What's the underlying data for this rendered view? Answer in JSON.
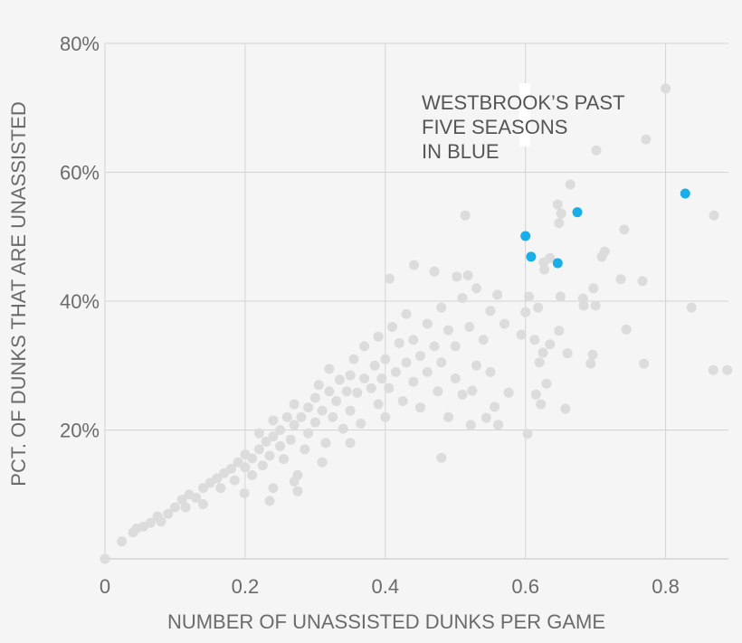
{
  "chart_data": {
    "type": "scatter",
    "title": "",
    "xlabel": "NUMBER OF UNASSISTED DUNKS PER GAME",
    "ylabel": "PCT. OF DUNKS THAT ARE UNASSISTED",
    "xlim": [
      0,
      0.89
    ],
    "ylim": [
      0,
      80
    ],
    "x_ticks": [
      "0",
      "0.2",
      "0.4",
      "0.6",
      "0.8"
    ],
    "x_tick_values": [
      0,
      0.2,
      0.4,
      0.6,
      0.8
    ],
    "y_ticks": [
      "20%",
      "40%",
      "60%",
      "80%"
    ],
    "y_tick_values": [
      20,
      40,
      60,
      80
    ],
    "grid": true,
    "annotation": [
      "WESTBROOK’S PAST",
      "FIVE SEASONS",
      "IN BLUE"
    ],
    "colors": {
      "background": "#f5f5f5",
      "other_players": "#dcdcdc",
      "westbrook": "#1aaee8",
      "grid": "#d4d4d4"
    },
    "series": [
      {
        "color": "#dcdcdc",
        "points": [
          [
            0,
            0
          ],
          [
            0.024,
            2.7
          ],
          [
            0.04,
            4.1
          ],
          [
            0.045,
            4.7
          ],
          [
            0.055,
            5.0
          ],
          [
            0.065,
            5.6
          ],
          [
            0.075,
            6.6
          ],
          [
            0.08,
            5.8
          ],
          [
            0.09,
            7.0
          ],
          [
            0.1,
            8.0
          ],
          [
            0.11,
            9.2
          ],
          [
            0.115,
            8.0
          ],
          [
            0.12,
            10.0
          ],
          [
            0.13,
            9.5
          ],
          [
            0.14,
            11.0
          ],
          [
            0.14,
            8.5
          ],
          [
            0.15,
            11.8
          ],
          [
            0.16,
            12.5
          ],
          [
            0.17,
            13.3
          ],
          [
            0.165,
            11.0
          ],
          [
            0.18,
            14.0
          ],
          [
            0.185,
            12.2
          ],
          [
            0.19,
            15.0
          ],
          [
            0.2,
            14.2
          ],
          [
            0.2,
            16.2
          ],
          [
            0.21,
            15.6
          ],
          [
            0.21,
            13.0
          ],
          [
            0.22,
            17.0
          ],
          [
            0.22,
            19.5
          ],
          [
            0.225,
            14.5
          ],
          [
            0.23,
            18.2
          ],
          [
            0.235,
            16.0
          ],
          [
            0.24,
            19.0
          ],
          [
            0.24,
            21.5
          ],
          [
            0.25,
            17.5
          ],
          [
            0.25,
            20.0
          ],
          [
            0.255,
            15.5
          ],
          [
            0.26,
            22.0
          ],
          [
            0.265,
            18.5
          ],
          [
            0.27,
            20.8
          ],
          [
            0.27,
            24.0
          ],
          [
            0.275,
            13.0
          ],
          [
            0.28,
            22.0
          ],
          [
            0.285,
            17.0
          ],
          [
            0.29,
            23.5
          ],
          [
            0.29,
            19.5
          ],
          [
            0.3,
            25.0
          ],
          [
            0.3,
            21.2
          ],
          [
            0.305,
            27.0
          ],
          [
            0.31,
            23.0
          ],
          [
            0.315,
            18.0
          ],
          [
            0.32,
            26.0
          ],
          [
            0.32,
            29.5
          ],
          [
            0.325,
            22.0
          ],
          [
            0.33,
            24.5
          ],
          [
            0.335,
            27.8
          ],
          [
            0.34,
            20.2
          ],
          [
            0.345,
            26.0
          ],
          [
            0.35,
            28.5
          ],
          [
            0.35,
            23.0
          ],
          [
            0.355,
            31.0
          ],
          [
            0.36,
            25.8
          ],
          [
            0.365,
            21.0
          ],
          [
            0.37,
            28.0
          ],
          [
            0.37,
            33.0
          ],
          [
            0.38,
            26.5
          ],
          [
            0.385,
            30.0
          ],
          [
            0.39,
            24.0
          ],
          [
            0.39,
            34.5
          ],
          [
            0.395,
            28.0
          ],
          [
            0.4,
            31.0
          ],
          [
            0.4,
            22.0
          ],
          [
            0.405,
            26.5
          ],
          [
            0.41,
            36.0
          ],
          [
            0.415,
            29.0
          ],
          [
            0.42,
            33.5
          ],
          [
            0.425,
            24.5
          ],
          [
            0.43,
            30.5
          ],
          [
            0.43,
            38.0
          ],
          [
            0.44,
            27.5
          ],
          [
            0.44,
            34.0
          ],
          [
            0.45,
            31.5
          ],
          [
            0.45,
            23.5
          ],
          [
            0.46,
            36.5
          ],
          [
            0.46,
            29.0
          ],
          [
            0.47,
            33.0
          ],
          [
            0.475,
            26.0
          ],
          [
            0.48,
            39.0
          ],
          [
            0.48,
            30.5
          ],
          [
            0.49,
            35.5
          ],
          [
            0.49,
            22.0
          ],
          [
            0.5,
            33.0
          ],
          [
            0.5,
            28.0
          ],
          [
            0.51,
            40.5
          ],
          [
            0.51,
            25.5
          ],
          [
            0.52,
            36.0
          ],
          [
            0.53,
            30.0
          ],
          [
            0.53,
            42.0
          ],
          [
            0.54,
            34.0
          ],
          [
            0.55,
            38.5
          ],
          [
            0.55,
            29.0
          ],
          [
            0.56,
            41.0
          ],
          [
            0.57,
            36.5
          ],
          [
            0.275,
            10.5
          ],
          [
            0.27,
            12.0
          ],
          [
            0.199,
            10.2
          ],
          [
            0.235,
            9.0
          ],
          [
            0.31,
            15.0
          ],
          [
            0.35,
            18.0
          ],
          [
            0.24,
            11.0
          ],
          [
            0.8,
            73.0
          ],
          [
            0.772,
            65.1
          ],
          [
            0.701,
            63.4
          ],
          [
            0.664,
            58.1
          ],
          [
            0.869,
            53.3
          ],
          [
            0.514,
            53.3
          ],
          [
            0.646,
            55.0
          ],
          [
            0.651,
            53.6
          ],
          [
            0.648,
            52.1
          ],
          [
            0.741,
            51.1
          ],
          [
            0.713,
            47.7
          ],
          [
            0.709,
            46.9
          ],
          [
            0.626,
            46.0
          ],
          [
            0.635,
            46.7
          ],
          [
            0.627,
            44.9
          ],
          [
            0.736,
            43.4
          ],
          [
            0.767,
            43.1
          ],
          [
            0.697,
            42.0
          ],
          [
            0.65,
            40.7
          ],
          [
            0.682,
            40.4
          ],
          [
            0.7,
            39.3
          ],
          [
            0.837,
            39.0
          ],
          [
            0.605,
            40.7
          ],
          [
            0.6,
            38.3
          ],
          [
            0.744,
            35.6
          ],
          [
            0.648,
            35.4
          ],
          [
            0.683,
            39.3
          ],
          [
            0.618,
            39.0
          ],
          [
            0.635,
            33.3
          ],
          [
            0.625,
            32.0
          ],
          [
            0.594,
            34.8
          ],
          [
            0.613,
            34.0
          ],
          [
            0.66,
            31.9
          ],
          [
            0.696,
            31.7
          ],
          [
            0.769,
            30.3
          ],
          [
            0.693,
            30.3
          ],
          [
            0.62,
            30.5
          ],
          [
            0.63,
            27.2
          ],
          [
            0.868,
            29.3
          ],
          [
            0.888,
            29.3
          ],
          [
            0.615,
            25.5
          ],
          [
            0.622,
            24.0
          ],
          [
            0.657,
            23.3
          ],
          [
            0.603,
            19.4
          ],
          [
            0.576,
            25.8
          ],
          [
            0.556,
            23.6
          ],
          [
            0.544,
            21.9
          ],
          [
            0.524,
            26.1
          ],
          [
            0.561,
            20.8
          ],
          [
            0.48,
            15.7
          ],
          [
            0.522,
            20.8
          ],
          [
            0.406,
            43.5
          ],
          [
            0.441,
            45.6
          ],
          [
            0.47,
            44.6
          ],
          [
            0.502,
            43.8
          ],
          [
            0.518,
            44.0
          ]
        ]
      },
      {
        "color": "#1aaee8",
        "points": [
          [
            0.6,
            50.1
          ],
          [
            0.608,
            46.9
          ],
          [
            0.646,
            45.9
          ],
          [
            0.674,
            53.8
          ],
          [
            0.828,
            56.7
          ]
        ]
      }
    ]
  }
}
